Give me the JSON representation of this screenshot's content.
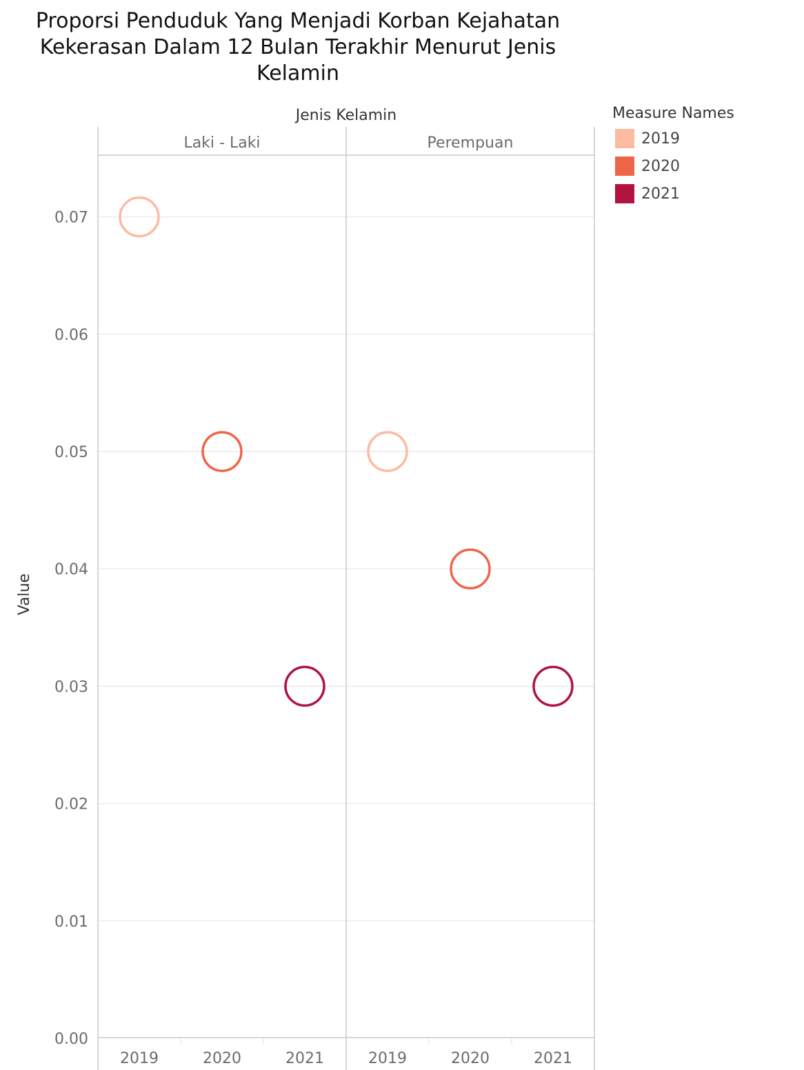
{
  "title_lines": [
    "Proporsi Penduduk Yang Menjadi Korban Kejahatan",
    "Kekerasan Dalam 12 Bulan Terakhir Menurut Jenis",
    "Kelamin"
  ],
  "chart_data": {
    "type": "scatter",
    "title": "Proporsi Penduduk Yang Menjadi Korban Kejahatan Kekerasan Dalam 12 Bulan Terakhir Menurut Jenis Kelamin",
    "column_header": "Jenis Kelamin",
    "ylabel": "Value",
    "ylim": [
      0,
      0.075
    ],
    "yticks": [
      "0.00",
      "0.01",
      "0.02",
      "0.03",
      "0.04",
      "0.05",
      "0.06",
      "0.07"
    ],
    "grid": true,
    "facets": [
      "Laki - Laki",
      "Perempuan"
    ],
    "categories": [
      "2019",
      "2020",
      "2021"
    ],
    "series": [
      {
        "name": "2019",
        "color": "#fcbba1",
        "values": [
          0.07,
          0.05
        ]
      },
      {
        "name": "2020",
        "color": "#ef6548",
        "values": [
          0.05,
          0.04
        ]
      },
      {
        "name": "2021",
        "color": "#b0133f",
        "values": [
          0.03,
          0.03
        ]
      }
    ],
    "legend_title": "Measure Names",
    "legend_position": "right"
  }
}
